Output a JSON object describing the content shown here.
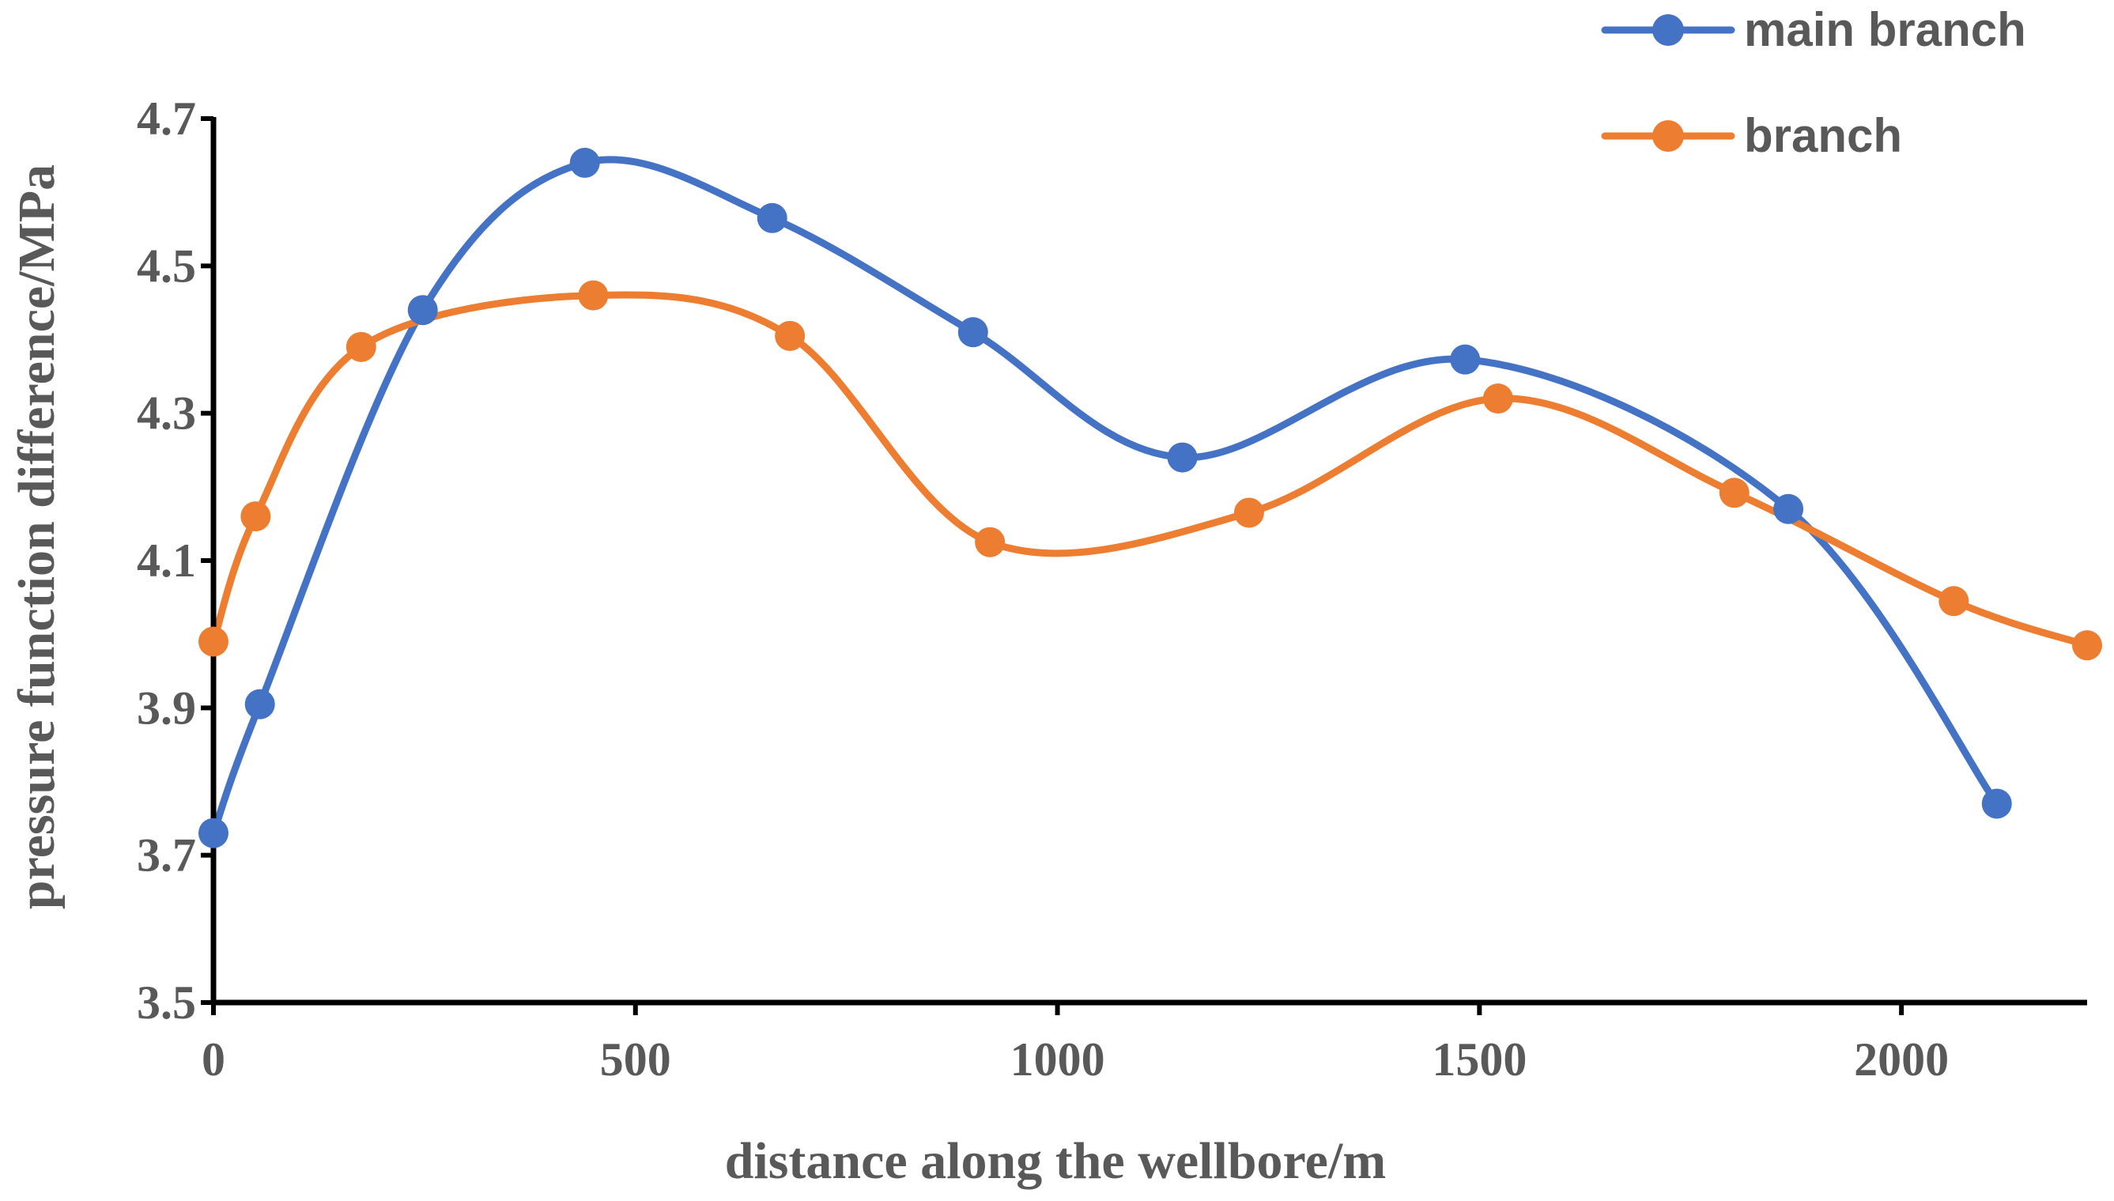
{
  "chart_data": {
    "type": "line",
    "smooth": true,
    "title": "",
    "xlabel": "distance along the wellbore/m",
    "ylabel": "pressure function difference/MPa",
    "xlim": [
      0,
      2220
    ],
    "ylim": [
      3.5,
      4.7
    ],
    "xticks": [
      0,
      500,
      1000,
      1500,
      2000
    ],
    "yticks": [
      3.5,
      3.7,
      3.9,
      4.1,
      4.3,
      4.5,
      4.7
    ],
    "xtick_labels": [
      "0",
      "500",
      "1000",
      "1500",
      "2000"
    ],
    "ytick_labels": [
      "3.5",
      "3.7",
      "3.9",
      "4.1",
      "4.3",
      "4.5",
      "4.7"
    ],
    "grid": false,
    "legend_position": "top-right",
    "series": [
      {
        "name": "main branch",
        "color": "#4472C4",
        "x": [
          0,
          55,
          248,
          440,
          662,
          900,
          1148,
          1483,
          1866,
          2113
        ],
        "y": [
          3.73,
          3.905,
          4.44,
          4.64,
          4.565,
          4.41,
          4.24,
          4.373,
          4.17,
          3.77
        ]
      },
      {
        "name": "branch",
        "color": "#ED7D31",
        "x": [
          0,
          50,
          175,
          450,
          683,
          920,
          1227,
          1522,
          1802,
          2062,
          2220
        ],
        "y": [
          3.99,
          4.16,
          4.39,
          4.46,
          4.405,
          4.125,
          4.165,
          4.32,
          4.192,
          4.045,
          3.985
        ]
      }
    ]
  }
}
